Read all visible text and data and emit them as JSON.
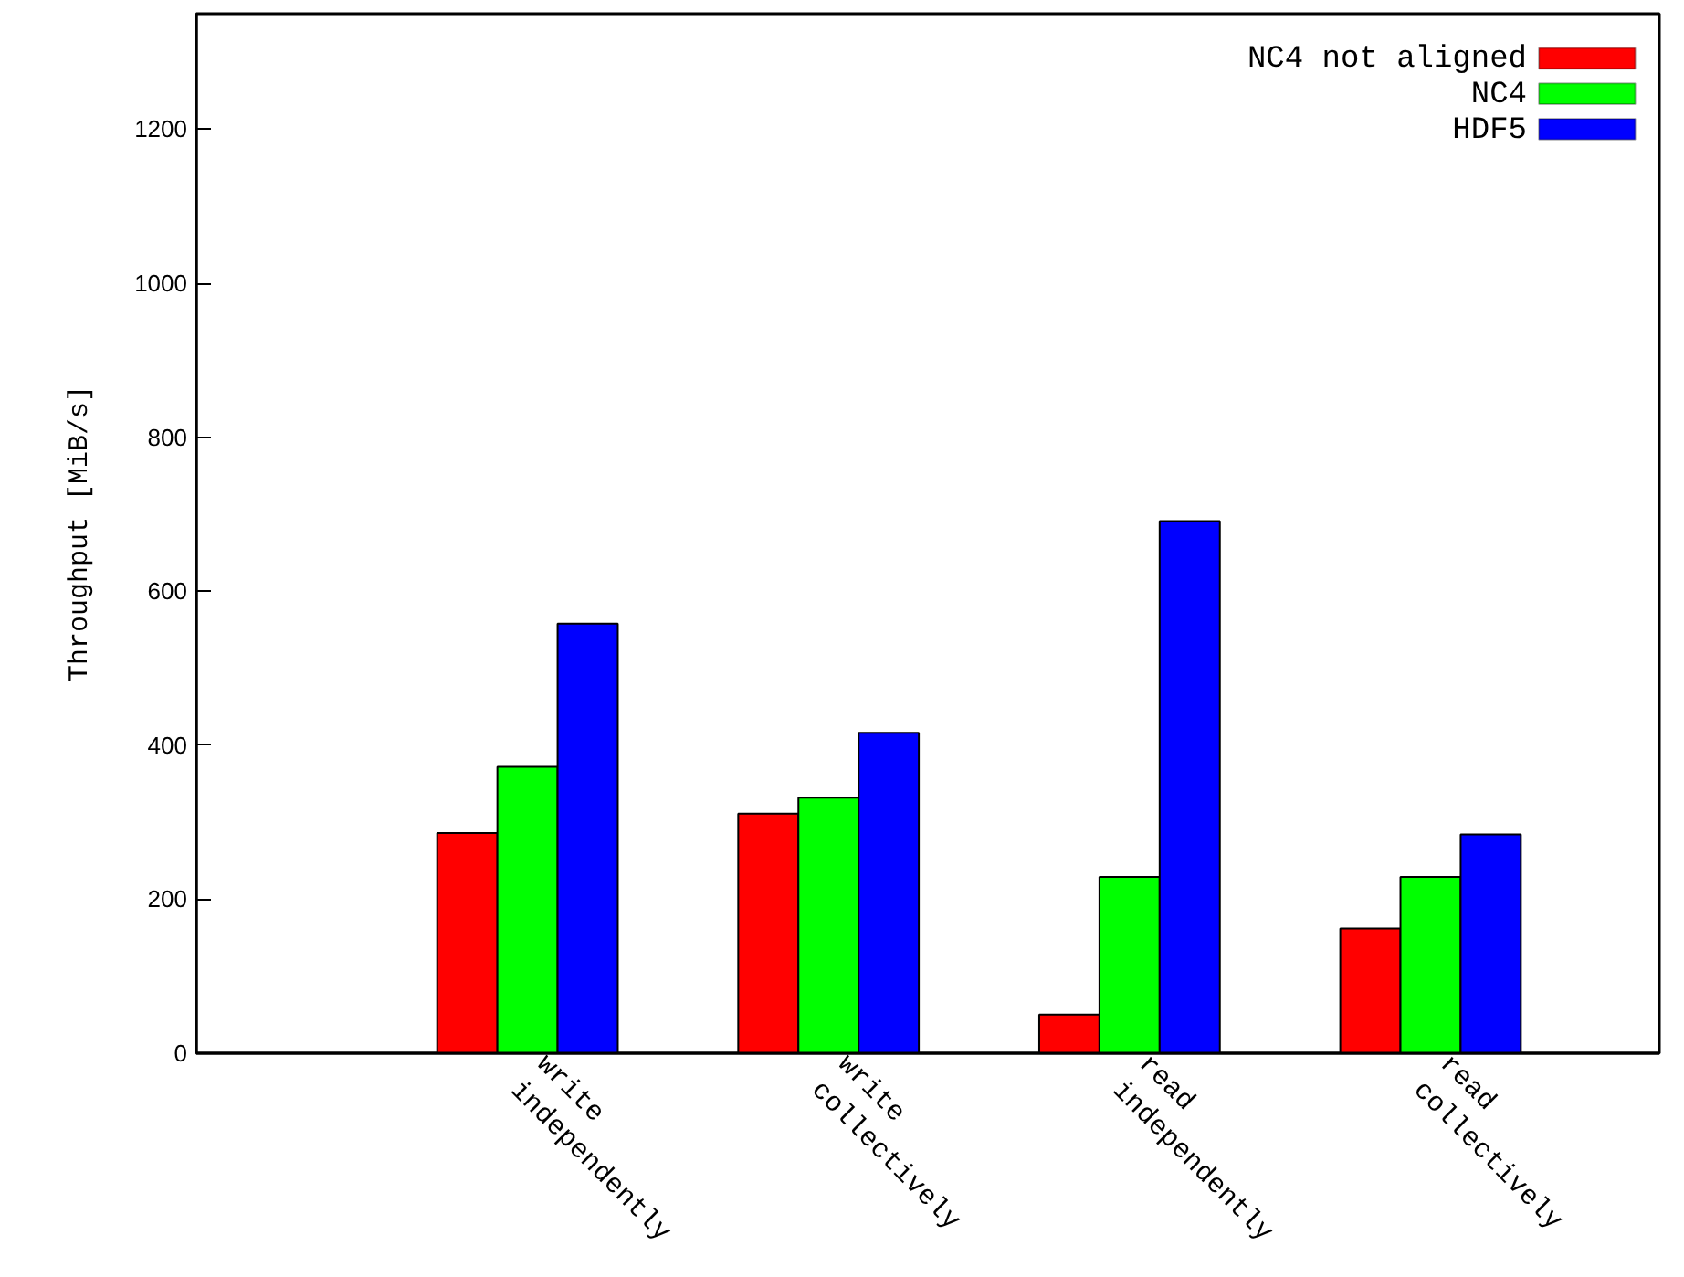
{
  "chart_data": {
    "type": "bar",
    "ylabel": "Throughput [MiB/s]",
    "categories": [
      "write independently",
      "write collectively",
      "read independently",
      "read collectively"
    ],
    "series": [
      {
        "name": "NC4 not aligned",
        "color": "#ff0000",
        "values": [
          286,
          311,
          50,
          162
        ]
      },
      {
        "name": "NC4",
        "color": "#00ff00",
        "values": [
          372,
          332,
          229,
          229
        ]
      },
      {
        "name": "HDF5",
        "color": "#0000ff",
        "values": [
          558,
          416,
          691,
          284
        ]
      }
    ],
    "ylim": [
      0,
      1350
    ],
    "yticks": [
      0,
      200,
      400,
      600,
      800,
      1000,
      1200
    ],
    "grid": false,
    "legend": "top right"
  }
}
